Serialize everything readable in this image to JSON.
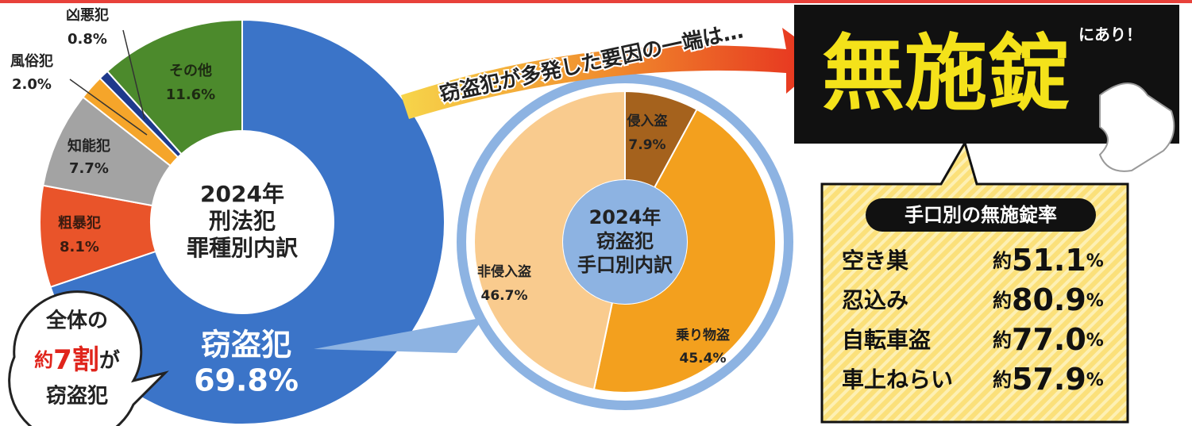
{
  "chart_data": [
    {
      "type": "pie",
      "center_label": [
        "2024年",
        "刑法犯",
        "罪種別内訳"
      ],
      "categories": [
        "窃盗犯",
        "粗暴犯",
        "知能犯",
        "風俗犯",
        "凶悪犯",
        "その他"
      ],
      "values": [
        69.8,
        8.1,
        7.7,
        2.0,
        0.8,
        11.6
      ],
      "value_labels": [
        "69.8%",
        "8.1%",
        "7.7%",
        "2.0%",
        "0.8%",
        "11.6%"
      ],
      "colors": [
        "#3b74c8",
        "#e9542a",
        "#a3a3a3",
        "#f5a52a",
        "#1e3a8c",
        "#4c8a2c"
      ]
    },
    {
      "type": "pie",
      "center_label": [
        "2024年",
        "窃盗犯",
        "手口別内訳"
      ],
      "categories": [
        "侵入盗",
        "乗り物盗",
        "非侵入盗"
      ],
      "values": [
        7.9,
        45.4,
        46.7
      ],
      "value_labels": [
        "7.9%",
        "45.4%",
        "46.7%"
      ],
      "colors": [
        "#a5621d",
        "#f3a01e",
        "#f9cb8e"
      ]
    }
  ],
  "callout": {
    "line1": "全体の",
    "prefix": "約",
    "emphasis": "7割",
    "suffix": "が",
    "line3": "窃盗犯"
  },
  "arrow_text": "窃盗犯が多発した要因の一端は…",
  "headline": {
    "main": "無施錠",
    "tail": "にあり！"
  },
  "panel": {
    "title": "手口別の無施錠率",
    "rows": [
      {
        "label": "空き巣",
        "prefix": "約",
        "value": "51.1",
        "unit": "%"
      },
      {
        "label": "忍込み",
        "prefix": "約",
        "value": "80.9",
        "unit": "%"
      },
      {
        "label": "自転車盗",
        "prefix": "約",
        "value": "77.0",
        "unit": "%"
      },
      {
        "label": "車上ねらい",
        "prefix": "約",
        "value": "57.9",
        "unit": "%"
      }
    ]
  }
}
